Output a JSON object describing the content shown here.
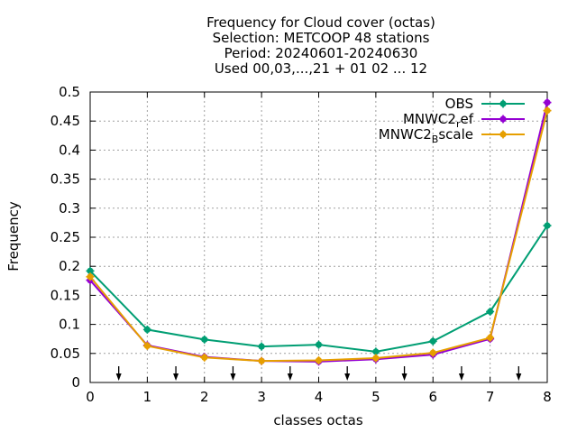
{
  "chart_data": {
    "type": "line",
    "title_lines": [
      "Frequency  for Cloud cover (octas)",
      "Selection: METCOOP     48 stations",
      "Period: 20240601-20240630",
      "Used 00,03,...,21 + 01 02 ... 12"
    ],
    "xlabel": "classes octas",
    "ylabel": "Frequency",
    "xlim": [
      0,
      8
    ],
    "ylim": [
      0,
      0.5
    ],
    "xticks": [
      "0",
      "1",
      "2",
      "3",
      "4",
      "5",
      "6",
      "7",
      "8"
    ],
    "yticks": [
      "0",
      "0.05",
      "0.1",
      "0.15",
      "0.2",
      "0.25",
      "0.3",
      "0.35",
      "0.4",
      "0.45",
      "0.5"
    ],
    "grid": true,
    "legend_position": "top-right",
    "x": [
      0,
      1,
      2,
      3,
      4,
      5,
      6,
      7,
      8
    ],
    "series": [
      {
        "name": "OBS",
        "name_parts": [
          {
            "text": "OBS",
            "sub": ""
          }
        ],
        "color": "#009e73",
        "values": [
          0.192,
          0.091,
          0.074,
          0.062,
          0.065,
          0.053,
          0.071,
          0.122,
          0.27
        ]
      },
      {
        "name": "MNWC2_ref",
        "name_parts": [
          {
            "text": "MNWC2",
            "sub": ""
          },
          {
            "text": "ef",
            "sub": "r"
          }
        ],
        "color": "#9400d3",
        "values": [
          0.176,
          0.064,
          0.044,
          0.037,
          0.036,
          0.04,
          0.048,
          0.075,
          0.482
        ]
      },
      {
        "name": "MNWC2_Bscale",
        "name_parts": [
          {
            "text": "MNWC2",
            "sub": ""
          },
          {
            "text": "scale",
            "sub": "B"
          }
        ],
        "color": "#e69f00",
        "values": [
          0.182,
          0.063,
          0.043,
          0.037,
          0.038,
          0.042,
          0.051,
          0.077,
          0.468
        ]
      }
    ],
    "arrows_at_x": [
      0.5,
      1.5,
      2.5,
      3.5,
      4.5,
      5.5,
      6.5,
      7.5
    ]
  }
}
